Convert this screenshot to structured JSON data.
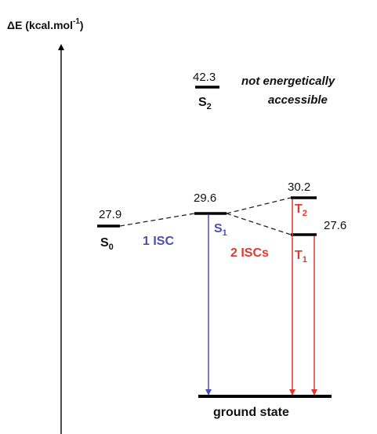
{
  "axis": {
    "prefix": "ΔE (kcal.mol",
    "exponent": "-1",
    "suffix": ")"
  },
  "states": {
    "s0": {
      "label": "S",
      "subscript": "0",
      "energy": "27.9"
    },
    "s1": {
      "label": "S",
      "subscript": "1",
      "energy": "29.6"
    },
    "s2": {
      "label": "S",
      "subscript": "2",
      "energy": "42.3"
    },
    "t1": {
      "label": "T",
      "subscript": "1",
      "energy": "27.6"
    },
    "t2": {
      "label": "T",
      "subscript": "2",
      "energy": "30.2"
    }
  },
  "ground_state_label": "ground state",
  "note_lines": [
    "not energetically",
    "accessible"
  ],
  "isc_labels": {
    "one": "1 ISC",
    "two": "2 ISCs"
  },
  "colors": {
    "singlet_path": "#4a4fb5",
    "triplet_path": "#e03a2f",
    "levels": "#000000"
  }
}
